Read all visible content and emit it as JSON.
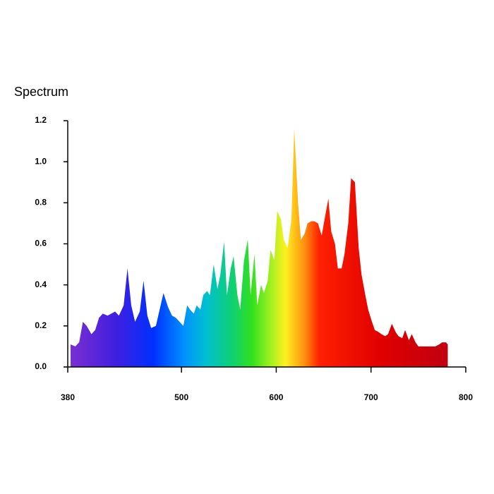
{
  "chart_data": {
    "type": "area",
    "title": "Spectrum",
    "x": [
      383,
      388,
      392,
      396,
      400,
      405,
      409,
      413,
      417,
      422,
      426,
      430,
      434,
      439,
      443,
      447,
      451,
      456,
      460,
      464,
      468,
      473,
      477,
      481,
      486,
      490,
      494,
      498,
      502,
      506,
      509,
      513,
      516,
      520,
      523,
      527,
      530,
      534,
      538,
      541,
      545,
      548,
      552,
      555,
      559,
      562,
      566,
      570,
      573,
      577,
      580,
      584,
      587,
      591,
      594,
      598,
      601,
      605,
      608,
      612,
      616,
      619,
      623,
      626,
      630,
      633,
      637,
      640,
      644,
      648,
      651,
      655,
      658,
      662,
      665,
      669,
      672,
      676,
      679,
      683,
      687,
      690,
      694,
      697,
      701,
      704,
      708,
      711,
      715,
      718,
      722,
      726,
      729,
      733,
      736,
      740,
      743,
      747,
      750,
      754,
      757,
      761,
      765,
      768,
      772,
      775,
      779,
      781
    ],
    "values": [
      0.11,
      0.1,
      0.12,
      0.22,
      0.2,
      0.16,
      0.18,
      0.24,
      0.26,
      0.25,
      0.26,
      0.27,
      0.25,
      0.3,
      0.48,
      0.3,
      0.22,
      0.27,
      0.42,
      0.25,
      0.19,
      0.2,
      0.28,
      0.36,
      0.29,
      0.25,
      0.24,
      0.22,
      0.2,
      0.3,
      0.28,
      0.26,
      0.3,
      0.28,
      0.35,
      0.37,
      0.35,
      0.5,
      0.38,
      0.45,
      0.61,
      0.35,
      0.48,
      0.54,
      0.35,
      0.28,
      0.52,
      0.62,
      0.35,
      0.55,
      0.3,
      0.4,
      0.36,
      0.42,
      0.57,
      0.52,
      0.76,
      0.72,
      0.62,
      0.58,
      0.72,
      1.16,
      0.8,
      0.62,
      0.65,
      0.7,
      0.71,
      0.71,
      0.7,
      0.64,
      0.72,
      0.82,
      0.66,
      0.6,
      0.48,
      0.48,
      0.55,
      0.7,
      0.92,
      0.9,
      0.58,
      0.45,
      0.35,
      0.28,
      0.22,
      0.18,
      0.17,
      0.16,
      0.15,
      0.16,
      0.21,
      0.17,
      0.15,
      0.14,
      0.18,
      0.13,
      0.16,
      0.12,
      0.1,
      0.1,
      0.1,
      0.1,
      0.1,
      0.1,
      0.11,
      0.12,
      0.12,
      0.11
    ],
    "xlim": [
      380,
      800
    ],
    "xticks": [
      380,
      500,
      600,
      700,
      800
    ],
    "ylim": [
      0,
      1.2
    ],
    "yticks": [
      {
        "value": 0,
        "label": "0.0"
      },
      0.2,
      0.4,
      0.6,
      0.8,
      {
        "value": 1,
        "label": "1.0"
      },
      1.2
    ]
  }
}
